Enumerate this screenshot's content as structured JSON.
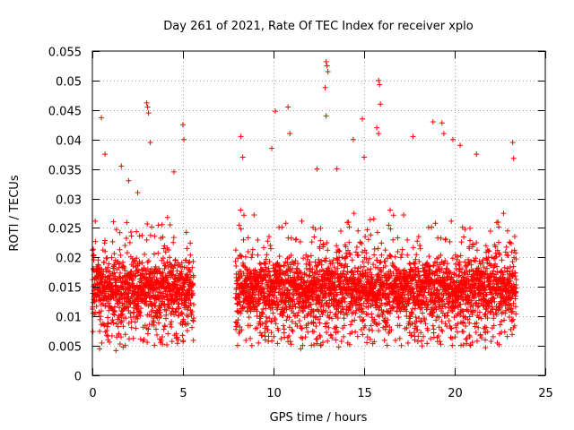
{
  "chart_data": {
    "type": "scatter",
    "title": "Day 261 of 2021, Rate Of TEC Index for receiver xplo",
    "xlabel": "GPS time / hours",
    "ylabel": "ROTI / TECUs",
    "xlim": [
      0,
      25
    ],
    "ylim": [
      0,
      0.055
    ],
    "xticks": [
      0,
      5,
      10,
      15,
      20,
      25
    ],
    "xtick_labels": [
      "0",
      "5",
      "10",
      "15",
      "20",
      "25"
    ],
    "yticks": [
      0,
      0.005,
      0.01,
      0.015,
      0.02,
      0.025,
      0.03,
      0.035,
      0.04,
      0.045,
      0.05,
      0.055
    ],
    "ytick_labels": [
      "0",
      "0.005",
      "0.01",
      "0.015",
      "0.02",
      "0.025",
      "0.03",
      "0.035",
      "0.04",
      "0.045",
      "0.05",
      "0.055"
    ],
    "grid": true,
    "marker": "+",
    "color": "#ff0000",
    "coverage_hours": [
      [
        0,
        5.6
      ],
      [
        7.9,
        23.4
      ]
    ],
    "typical_range": [
      0.007,
      0.022
    ],
    "series": [
      {
        "name": "ROTI",
        "points": [
          [
            0.5,
            0.0437
          ],
          [
            0.7,
            0.0375
          ],
          [
            1.6,
            0.0355
          ],
          [
            2.0,
            0.033
          ],
          [
            2.5,
            0.031
          ],
          [
            3.0,
            0.0462
          ],
          [
            3.05,
            0.0455
          ],
          [
            3.1,
            0.0445
          ],
          [
            3.2,
            0.0395
          ],
          [
            4.5,
            0.0345
          ],
          [
            5.0,
            0.0425
          ],
          [
            5.05,
            0.04
          ],
          [
            0.4,
            0.0045
          ],
          [
            1.3,
            0.0042
          ],
          [
            1.7,
            0.0048
          ],
          [
            8.2,
            0.0405
          ],
          [
            8.3,
            0.037
          ],
          [
            9.9,
            0.0385
          ],
          [
            10.1,
            0.0448
          ],
          [
            10.8,
            0.0455
          ],
          [
            10.9,
            0.041
          ],
          [
            12.4,
            0.035
          ],
          [
            12.9,
            0.0532
          ],
          [
            12.95,
            0.0525
          ],
          [
            13.0,
            0.0515
          ],
          [
            12.85,
            0.0488
          ],
          [
            12.9,
            0.044
          ],
          [
            13.5,
            0.035
          ],
          [
            14.4,
            0.04
          ],
          [
            14.9,
            0.0435
          ],
          [
            15.0,
            0.037
          ],
          [
            15.8,
            0.05
          ],
          [
            15.85,
            0.0493
          ],
          [
            15.9,
            0.046
          ],
          [
            15.7,
            0.042
          ],
          [
            15.8,
            0.041
          ],
          [
            17.7,
            0.0405
          ],
          [
            18.8,
            0.043
          ],
          [
            19.3,
            0.0428
          ],
          [
            19.4,
            0.041
          ],
          [
            19.9,
            0.04
          ],
          [
            20.3,
            0.039
          ],
          [
            21.2,
            0.0375
          ],
          [
            23.2,
            0.0395
          ],
          [
            23.25,
            0.0368
          ],
          [
            11.5,
            0.0045
          ],
          [
            13.6,
            0.0048
          ],
          [
            18.2,
            0.005
          ],
          [
            21.7,
            0.0047
          ]
        ]
      }
    ]
  }
}
